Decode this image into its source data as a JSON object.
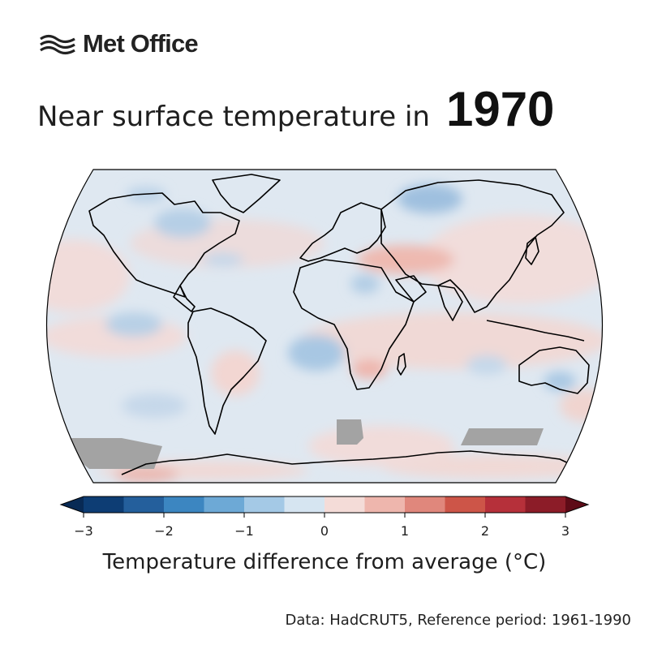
{
  "brand": {
    "name": "Met Office",
    "logo_icon": "met-office-waves-icon"
  },
  "title": {
    "prefix": "Near surface temperature in",
    "year": "1970"
  },
  "map": {
    "projection": "Robinson",
    "missing_data_color": "#a3a3a3",
    "land_outline_color": "#000000"
  },
  "colorbar": {
    "label": "Temperature difference from average (°C)",
    "ticks": [
      "−3",
      "−2",
      "−1",
      "0",
      "1",
      "2",
      "3"
    ],
    "tick_values": [
      -3,
      -2,
      -1,
      0,
      1,
      2,
      3
    ],
    "range": [
      -3,
      3
    ],
    "step": 0.5,
    "extend": "both",
    "under_color": "#082a55",
    "over_color": "#5e0b17",
    "colors": [
      "#0d3d74",
      "#245f9c",
      "#3c86c1",
      "#6da9d6",
      "#a4c9e6",
      "#d6e5f1",
      "#f4dcd8",
      "#eeb6ad",
      "#e0877c",
      "#cd5548",
      "#b6303a",
      "#8c1c28"
    ]
  },
  "source": "Data: HadCRUT5, Reference period: 1961-1990"
}
